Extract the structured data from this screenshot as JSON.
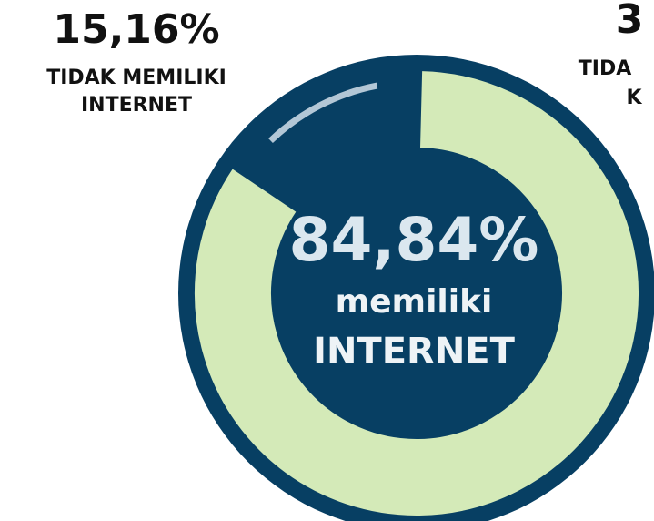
{
  "chart_data": {
    "type": "donut",
    "labels": [
      [
        "memiliki",
        "INTERNET"
      ],
      [
        "TIDAK MEMILIKI",
        "INTERNET"
      ]
    ],
    "values": [
      84.84,
      15.16
    ],
    "value_labels": [
      "84,84%",
      "15,16%"
    ],
    "colors": [
      "#d4eab8",
      "#b3c7d6"
    ],
    "annotations": [
      "3",
      "TIDA",
      "K"
    ]
  }
}
